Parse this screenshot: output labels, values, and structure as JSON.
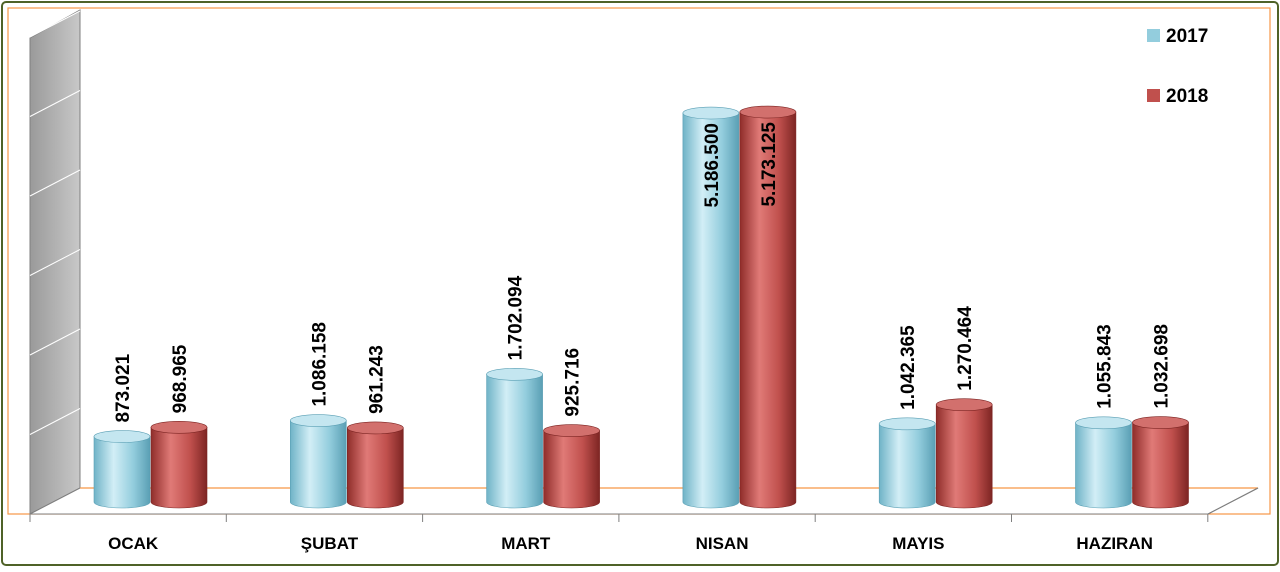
{
  "chart_data": {
    "type": "bar",
    "title": "",
    "xlabel": "",
    "ylabel": "",
    "categories": [
      "OCAK",
      "ŞUBAT",
      "MART",
      "NISAN",
      "MAYIS",
      "HAZIRAN"
    ],
    "series": [
      {
        "name": "2017",
        "color": "#93cddd",
        "values": [
          873021,
          1086158,
          1702094,
          5186500,
          1042365,
          1055843
        ],
        "labels": [
          "873.021",
          "1.086.158",
          "1.702.094",
          "5.186.500",
          "1.042.365",
          "1.055.843"
        ]
      },
      {
        "name": "2018",
        "color": "#c0504d",
        "values": [
          968965,
          961243,
          925716,
          5173125,
          1270464,
          1032698
        ],
        "labels": [
          "968.965",
          "961.243",
          "925.716",
          "5.173.125",
          "1.270.464",
          "1.032.698"
        ]
      }
    ],
    "ylim": [
      0,
      6000000
    ],
    "grid": true,
    "legend": "top-right",
    "style": "3d-cylinder",
    "frame_color": "#f79646",
    "outer_border_color": "#4f6228"
  }
}
